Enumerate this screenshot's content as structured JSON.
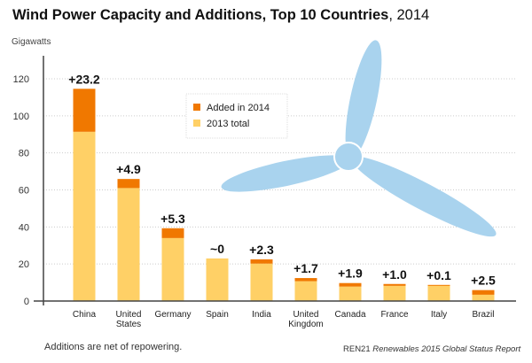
{
  "title": {
    "bold": "Wind Power Capacity and Additions, Top 10 Countries",
    "suffix": ", 2014"
  },
  "footer": {
    "note": "Additions are net of repowering.",
    "source_org": "REN21",
    "source_title": "Renewables 2015 Global Status Report"
  },
  "colors": {
    "added": "#F07800",
    "base": "#FFD066",
    "turbine": "#A9D3EE",
    "grid": "#CCCCCC",
    "axis": "#444444"
  },
  "chart_data": {
    "type": "bar",
    "stacked": true,
    "title": "Wind Power Capacity and Additions, Top 10 Countries, 2014",
    "ylabel": "Gigawatts",
    "xlabel": "",
    "ylim": [
      0,
      120
    ],
    "yticks": [
      0,
      20,
      40,
      60,
      80,
      100,
      120
    ],
    "grid": true,
    "legend_position": "top-center",
    "categories": [
      "China",
      "United States",
      "Germany",
      "Spain",
      "India",
      "United Kingdom",
      "Canada",
      "France",
      "Italy",
      "Brazil"
    ],
    "category_lines": [
      [
        "China"
      ],
      [
        "United",
        "States"
      ],
      [
        "Germany"
      ],
      [
        "Spain"
      ],
      [
        "India"
      ],
      [
        "United",
        "Kingdom"
      ],
      [
        "Canada"
      ],
      [
        "France"
      ],
      [
        "Italy"
      ],
      [
        "Brazil"
      ]
    ],
    "series": [
      {
        "name": "2013 total",
        "values": [
          91.4,
          61.0,
          34.0,
          23.0,
          20.2,
          10.7,
          7.8,
          8.2,
          8.6,
          3.4
        ]
      },
      {
        "name": "Added in 2014",
        "values": [
          23.2,
          4.9,
          5.3,
          0,
          2.3,
          1.7,
          1.9,
          1.0,
          0.1,
          2.5
        ]
      }
    ],
    "data_labels": [
      "+23.2",
      "+4.9",
      "+5.3",
      "~0",
      "+2.3",
      "+1.7",
      "+1.9",
      "+1.0",
      "+0.1",
      "+2.5"
    ],
    "legend": [
      "Added in 2014",
      "2013 total"
    ]
  }
}
